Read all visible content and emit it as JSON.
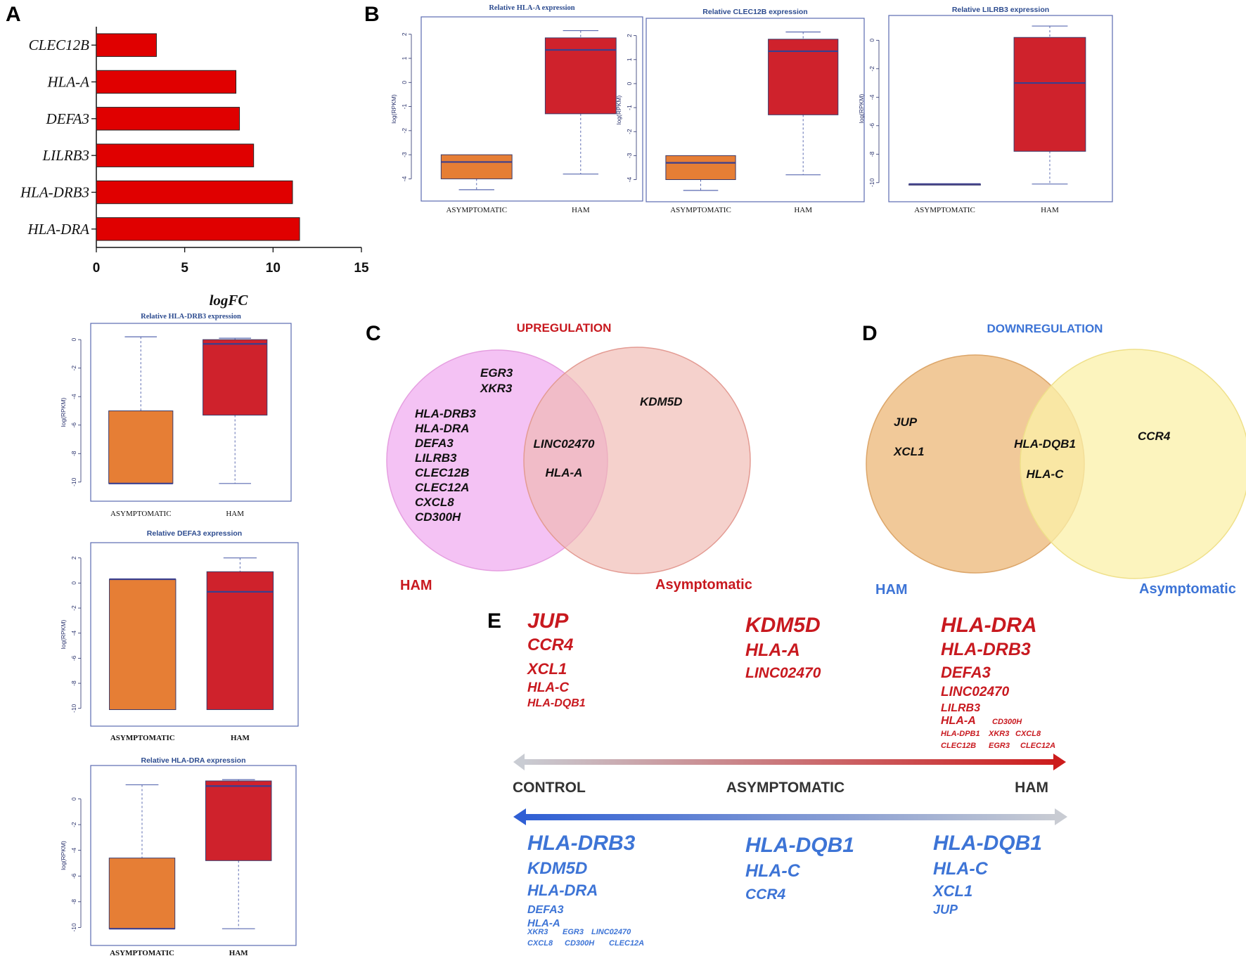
{
  "panel_labels": {
    "a": "A",
    "b": "B",
    "c": "C",
    "d": "D",
    "e": "E"
  },
  "colors": {
    "bar_red": "#e00000",
    "box_orange": "#e67e35",
    "box_red": "#cf222c",
    "median": "#3a3f8f",
    "frame": "#5a6ab0",
    "axis_text": "#27306b",
    "title_blue": "#2c4b8f",
    "venn_pink": "#f0a8f0",
    "venn_salmon": "#f0b8b0",
    "venn_orange": "#eebb80",
    "venn_yellow": "#fbf0a8",
    "up_red": "#c8191f",
    "down_blue": "#3d74d6",
    "grey": "#b8bcc6",
    "dark": "#333333"
  },
  "chart_data": [
    {
      "id": "A",
      "type": "bar",
      "orientation": "horizontal",
      "categories": [
        "CLEC12B",
        "HLA-A",
        "DEFA3",
        "LILRB3",
        "HLA-DRB3",
        "HLA-DRA"
      ],
      "values": [
        3.4,
        7.9,
        8.1,
        8.9,
        11.1,
        11.5
      ],
      "xlabel": "logFC",
      "xlim": [
        0,
        15
      ],
      "xticks": [
        0,
        5,
        10,
        15
      ]
    },
    {
      "id": "B1",
      "type": "box",
      "title": "Relative HLA-A expression",
      "ylabel": "log(RPKM)",
      "ylim": [
        -4.6,
        2.4
      ],
      "yticks": [
        2,
        1,
        0,
        -1,
        -2,
        -3,
        -4
      ],
      "groups": [
        {
          "name": "ASYMPTOMATIC",
          "min": -4.45,
          "q1": -4.0,
          "median": -3.3,
          "q3": -3.0,
          "max": -3.0
        },
        {
          "name": "HAM",
          "min": -3.8,
          "q1": -1.3,
          "median": 1.35,
          "q3": 1.85,
          "max": 2.15
        }
      ]
    },
    {
      "id": "B2",
      "type": "box",
      "title": "Relative CLEC12B expression",
      "ylabel": "log(RPKM)",
      "ylim": [
        -4.6,
        2.4
      ],
      "yticks": [
        2,
        1,
        0,
        -1,
        -2,
        -3,
        -4
      ],
      "groups": [
        {
          "name": "ASYMPTOMATIC",
          "min": -4.45,
          "q1": -4.0,
          "median": -3.3,
          "q3": -3.0,
          "max": -3.0
        },
        {
          "name": "HAM",
          "min": -3.8,
          "q1": -1.3,
          "median": 1.35,
          "q3": 1.85,
          "max": 2.15
        }
      ]
    },
    {
      "id": "B3",
      "type": "box",
      "title": "Relative LILRB3 expression",
      "ylabel": "log(RPKM)",
      "ylim": [
        -10.8,
        1.2
      ],
      "yticks": [
        0,
        -2,
        -4,
        -6,
        -8,
        -10
      ],
      "groups": [
        {
          "name": "ASYMPTOMATIC",
          "min": -10.1,
          "q1": -10.1,
          "median": -10.1,
          "q3": -10.1,
          "max": -10.1
        },
        {
          "name": "HAM",
          "min": -10.1,
          "q1": -7.8,
          "median": -3.0,
          "q3": 0.2,
          "max": 1.0
        }
      ]
    },
    {
      "id": "A2",
      "type": "box",
      "title": "Relative HLA-DRB3 expression",
      "ylabel": "log(RPKM)",
      "ylim": [
        -10.8,
        0.6
      ],
      "yticks": [
        0,
        -2,
        -4,
        -6,
        -8,
        -10
      ],
      "groups": [
        {
          "name": "ASYMPTOMATIC",
          "min": -10.1,
          "q1": -10.1,
          "median": -10.1,
          "q3": -5.0,
          "max": 0.2
        },
        {
          "name": "HAM",
          "min": -10.1,
          "q1": -5.3,
          "median": -0.3,
          "q3": 0.0,
          "max": 0.1
        }
      ]
    },
    {
      "id": "A3",
      "type": "box",
      "title": "Relative DEFA3 expression",
      "ylabel": "log(RPKM)",
      "ylim": [
        -10.8,
        2.6
      ],
      "yticks": [
        2,
        0,
        -2,
        -4,
        -6,
        -8,
        -10
      ],
      "groups": [
        {
          "name": "ASYMPTOMATIC",
          "min": -10.1,
          "q1": -10.1,
          "median": 0.3,
          "q3": 0.3,
          "max": 0.3
        },
        {
          "name": "HAM",
          "min": -10.1,
          "q1": -10.1,
          "median": -0.7,
          "q3": 0.9,
          "max": 2.0
        }
      ]
    },
    {
      "id": "A4",
      "type": "box",
      "title": "Relative HLA-DRA expression",
      "ylabel": "log(RPKM)",
      "ylim": [
        -10.8,
        2.0
      ],
      "yticks": [
        0,
        -2,
        -4,
        -6,
        -8,
        -10
      ],
      "groups": [
        {
          "name": "ASYMPTOMATIC",
          "min": -10.1,
          "q1": -10.1,
          "median": -10.1,
          "q3": -4.6,
          "max": 1.1
        },
        {
          "name": "HAM",
          "min": -10.1,
          "q1": -4.8,
          "median": 1.0,
          "q3": 1.4,
          "max": 1.5
        }
      ]
    }
  ],
  "venn_c": {
    "title": "UPREGULATION",
    "left_label": "HAM",
    "right_label": "Asymptomatic",
    "left_top": [
      "EGR3",
      "XKR3"
    ],
    "left_only": [
      "HLA-DRB3",
      "HLA-DRA",
      "DEFA3",
      "LILRB3",
      "CLEC12B",
      "CLEC12A",
      "CXCL8",
      "CD300H"
    ],
    "both": [
      "LINC02470",
      "HLA-A"
    ],
    "right_only": [
      "KDM5D"
    ]
  },
  "venn_d": {
    "title": "DOWNREGULATION",
    "left_label": "HAM",
    "right_label": "Asymptomatic",
    "left_only": [
      "JUP",
      "XCL1"
    ],
    "both": [
      "HLA-DQB1",
      "HLA-C"
    ],
    "right_only": [
      "CCR4"
    ]
  },
  "panel_e": {
    "axis_labels": [
      "CONTROL",
      "ASYMPTOMATIC",
      "HAM"
    ],
    "up_control": [
      "JUP",
      "CCR4",
      "XCL1",
      "HLA-C",
      "HLA-DQB1"
    ],
    "up_asym": [
      "KDM5D",
      "HLA-A",
      "LINC02470"
    ],
    "up_ham": [
      "HLA-DRA",
      "HLA-DRB3",
      "DEFA3",
      "LINC02470",
      "LILRB3"
    ],
    "up_ham_small": [
      "HLA-A",
      "CD300H",
      "HLA-DPB1",
      "XKR3",
      "CXCL8",
      "CLEC12B",
      "EGR3",
      "CLEC12A"
    ],
    "down_control": [
      "HLA-DRB3",
      "KDM5D",
      "HLA-DRA",
      "DEFA3",
      "HLA-A"
    ],
    "down_control_small": [
      "XKR3",
      "EGR3",
      "LINC02470",
      "CXCL8",
      "CD300H",
      "CLEC12A"
    ],
    "down_asym": [
      "HLA-DQB1",
      "HLA-C",
      "CCR4"
    ],
    "down_ham": [
      "HLA-DQB1",
      "HLA-C",
      "XCL1",
      "JUP"
    ]
  }
}
